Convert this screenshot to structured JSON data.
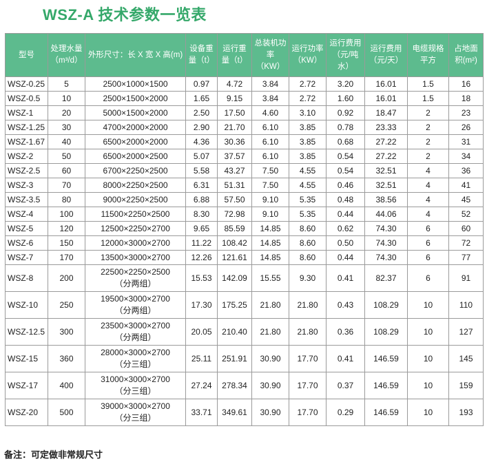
{
  "title": "WSZ-A 技术参数一览表",
  "headers": [
    "型号",
    "处理水量（m³/d）",
    "外形尺寸：长 X 宽 X 高(m)",
    "设备重量（t）",
    "运行重量（t）",
    "总装机功率（KW）",
    "运行功率（KW）",
    "运行费用（元/吨水）",
    "运行费用（元/天）",
    "电缆规格平方",
    "占地面积(m²)"
  ],
  "rows": [
    [
      "WSZ-0.25",
      "5",
      "2500×1000×1500",
      "",
      "0.97",
      "4.72",
      "3.84",
      "2.72",
      "3.20",
      "16.01",
      "1.5",
      "16"
    ],
    [
      "WSZ-0.5",
      "10",
      "2500×1500×2000",
      "",
      "1.65",
      "9.15",
      "3.84",
      "2.72",
      "1.60",
      "16.01",
      "1.5",
      "18"
    ],
    [
      "WSZ-1",
      "20",
      "5000×1500×2000",
      "",
      "2.50",
      "17.50",
      "4.60",
      "3.10",
      "0.92",
      "18.47",
      "2",
      "23"
    ],
    [
      "WSZ-1.25",
      "30",
      "4700×2000×2000",
      "",
      "2.90",
      "21.70",
      "6.10",
      "3.85",
      "0.78",
      "23.33",
      "2",
      "26"
    ],
    [
      "WSZ-1.67",
      "40",
      "6500×2000×2000",
      "",
      "4.36",
      "30.36",
      "6.10",
      "3.85",
      "0.68",
      "27.22",
      "2",
      "31"
    ],
    [
      "WSZ-2",
      "50",
      "6500×2000×2500",
      "",
      "5.07",
      "37.57",
      "6.10",
      "3.85",
      "0.54",
      "27.22",
      "2",
      "34"
    ],
    [
      "WSZ-2.5",
      "60",
      "6700×2250×2500",
      "",
      "5.58",
      "43.27",
      "7.50",
      "4.55",
      "0.54",
      "32.51",
      "4",
      "36"
    ],
    [
      "WSZ-3",
      "70",
      "8000×2250×2500",
      "",
      "6.31",
      "51.31",
      "7.50",
      "4.55",
      "0.46",
      "32.51",
      "4",
      "41"
    ],
    [
      "WSZ-3.5",
      "80",
      "9000×2250×2500",
      "",
      "6.88",
      "57.50",
      "9.10",
      "5.35",
      "0.48",
      "38.56",
      "4",
      "45"
    ],
    [
      "WSZ-4",
      "100",
      "11500×2250×2500",
      "",
      "8.30",
      "72.98",
      "9.10",
      "5.35",
      "0.44",
      "44.06",
      "4",
      "52"
    ],
    [
      "WSZ-5",
      "120",
      "12500×2250×2700",
      "",
      "9.65",
      "85.59",
      "14.85",
      "8.60",
      "0.62",
      "74.30",
      "6",
      "60"
    ],
    [
      "WSZ-6",
      "150",
      "12000×3000×2700",
      "",
      "11.22",
      "108.42",
      "14.85",
      "8.60",
      "0.50",
      "74.30",
      "6",
      "72"
    ],
    [
      "WSZ-7",
      "170",
      "13500×3000×2700",
      "",
      "12.26",
      "121.61",
      "14.85",
      "8.60",
      "0.44",
      "74.30",
      "6",
      "77"
    ],
    [
      "WSZ-8",
      "200",
      "22500×2250×2500",
      "（分两组）",
      "15.53",
      "142.09",
      "15.55",
      "9.30",
      "0.41",
      "82.37",
      "6",
      "91"
    ],
    [
      "WSZ-10",
      "250",
      "19500×3000×2700",
      "（分两组）",
      "17.30",
      "175.25",
      "21.80",
      "21.80",
      "0.43",
      "108.29",
      "10",
      "110"
    ],
    [
      "WSZ-12.5",
      "300",
      "23500×3000×2700",
      "（分两组）",
      "20.05",
      "210.40",
      "21.80",
      "21.80",
      "0.36",
      "108.29",
      "10",
      "127"
    ],
    [
      "WSZ-15",
      "360",
      "28000×3000×2700",
      "（分三组）",
      "25.11",
      "251.91",
      "30.90",
      "17.70",
      "0.41",
      "146.59",
      "10",
      "145"
    ],
    [
      "WSZ-17",
      "400",
      "31000×3000×2700",
      "（分三组）",
      "27.24",
      "278.34",
      "30.90",
      "17.70",
      "0.37",
      "146.59",
      "10",
      "159"
    ],
    [
      "WSZ-20",
      "500",
      "39000×3000×2700",
      "（分三组）",
      "33.71",
      "349.61",
      "30.90",
      "17.70",
      "0.29",
      "146.59",
      "10",
      "193"
    ]
  ],
  "note": "备注：可定做非常规尺寸",
  "colors": {
    "title": "#35a86a",
    "header_bg": "#5dbb8e",
    "header_text": "#ffffff",
    "border": "#9a9a9a"
  }
}
